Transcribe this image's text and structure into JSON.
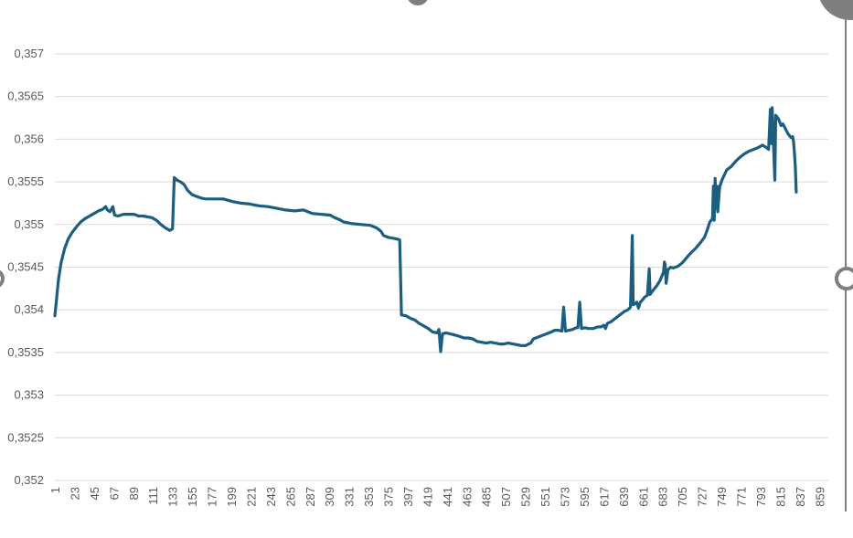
{
  "chart_data": {
    "type": "line",
    "title": "",
    "xlabel": "",
    "ylabel": "",
    "grid": true,
    "legend": "none",
    "ylim": [
      0.352,
      0.357
    ],
    "x_range": [
      1,
      869
    ],
    "y_ticks": [
      "0,352",
      "0,3525",
      "0,353",
      "0,3535",
      "0,354",
      "0,3545",
      "0,355",
      "0,3555",
      "0,356",
      "0,3565",
      "0,357"
    ],
    "x_ticks": [
      "1",
      "23",
      "45",
      "67",
      "89",
      "111",
      "133",
      "155",
      "177",
      "199",
      "221",
      "243",
      "265",
      "287",
      "309",
      "331",
      "353",
      "375",
      "397",
      "419",
      "441",
      "463",
      "485",
      "507",
      "529",
      "551",
      "573",
      "595",
      "617",
      "639",
      "661",
      "683",
      "705",
      "727",
      "749",
      "771",
      "793",
      "815",
      "837",
      "859"
    ],
    "series": [
      {
        "color": "#1b5e7f",
        "points": [
          [
            1,
            0.35393
          ],
          [
            3,
            0.35413
          ],
          [
            5,
            0.35435
          ],
          [
            8,
            0.35455
          ],
          [
            12,
            0.35472
          ],
          [
            16,
            0.35483
          ],
          [
            20,
            0.3549
          ],
          [
            25,
            0.35497
          ],
          [
            30,
            0.35503
          ],
          [
            35,
            0.35507
          ],
          [
            40,
            0.3551
          ],
          [
            45,
            0.35513
          ],
          [
            50,
            0.35516
          ],
          [
            55,
            0.35518
          ],
          [
            58,
            0.35521
          ],
          [
            60,
            0.35517
          ],
          [
            63,
            0.35515
          ],
          [
            66,
            0.35521
          ],
          [
            68,
            0.35511
          ],
          [
            72,
            0.3551
          ],
          [
            78,
            0.35512
          ],
          [
            85,
            0.35512
          ],
          [
            90,
            0.35512
          ],
          [
            95,
            0.3551
          ],
          [
            100,
            0.3551
          ],
          [
            110,
            0.35508
          ],
          [
            115,
            0.35505
          ],
          [
            120,
            0.355
          ],
          [
            125,
            0.35496
          ],
          [
            130,
            0.35493
          ],
          [
            133,
            0.35495
          ],
          [
            135,
            0.35555
          ],
          [
            138,
            0.35552
          ],
          [
            142,
            0.3555
          ],
          [
            146,
            0.35547
          ],
          [
            150,
            0.3554
          ],
          [
            155,
            0.35535
          ],
          [
            160,
            0.35533
          ],
          [
            165,
            0.35531
          ],
          [
            170,
            0.3553
          ],
          [
            180,
            0.3553
          ],
          [
            190,
            0.3553
          ],
          [
            200,
            0.35527
          ],
          [
            210,
            0.35525
          ],
          [
            220,
            0.35524
          ],
          [
            230,
            0.35522
          ],
          [
            240,
            0.35521
          ],
          [
            250,
            0.35519
          ],
          [
            260,
            0.35517
          ],
          [
            270,
            0.35516
          ],
          [
            280,
            0.35517
          ],
          [
            290,
            0.35513
          ],
          [
            300,
            0.35512
          ],
          [
            310,
            0.35511
          ],
          [
            315,
            0.35508
          ],
          [
            320,
            0.35506
          ],
          [
            325,
            0.35503
          ],
          [
            330,
            0.35502
          ],
          [
            335,
            0.35501
          ],
          [
            345,
            0.355
          ],
          [
            355,
            0.35499
          ],
          [
            362,
            0.35496
          ],
          [
            367,
            0.35492
          ],
          [
            370,
            0.35487
          ],
          [
            375,
            0.35485
          ],
          [
            380,
            0.35484
          ],
          [
            385,
            0.35483
          ],
          [
            388,
            0.35482
          ],
          [
            390,
            0.35394
          ],
          [
            395,
            0.35393
          ],
          [
            400,
            0.3539
          ],
          [
            405,
            0.35388
          ],
          [
            410,
            0.35384
          ],
          [
            415,
            0.35381
          ],
          [
            420,
            0.35378
          ],
          [
            425,
            0.35374
          ],
          [
            430,
            0.35373
          ],
          [
            432,
            0.35377
          ],
          [
            434,
            0.35351
          ],
          [
            436,
            0.35372
          ],
          [
            440,
            0.35373
          ],
          [
            448,
            0.35371
          ],
          [
            455,
            0.35369
          ],
          [
            460,
            0.35367
          ],
          [
            465,
            0.35367
          ],
          [
            470,
            0.35366
          ],
          [
            475,
            0.35363
          ],
          [
            480,
            0.35362
          ],
          [
            485,
            0.35361
          ],
          [
            490,
            0.35362
          ],
          [
            495,
            0.35361
          ],
          [
            500,
            0.3536
          ],
          [
            505,
            0.3536
          ],
          [
            510,
            0.35361
          ],
          [
            515,
            0.3536
          ],
          [
            520,
            0.35359
          ],
          [
            525,
            0.35358
          ],
          [
            529,
            0.35358
          ],
          [
            535,
            0.35361
          ],
          [
            538,
            0.35366
          ],
          [
            543,
            0.35368
          ],
          [
            548,
            0.3537
          ],
          [
            553,
            0.35372
          ],
          [
            558,
            0.35374
          ],
          [
            562,
            0.35376
          ],
          [
            566,
            0.35376
          ],
          [
            570,
            0.35375
          ],
          [
            572,
            0.35403
          ],
          [
            574,
            0.35375
          ],
          [
            578,
            0.35376
          ],
          [
            582,
            0.35377
          ],
          [
            586,
            0.35379
          ],
          [
            588,
            0.35379
          ],
          [
            590,
            0.35409
          ],
          [
            592,
            0.35378
          ],
          [
            596,
            0.35379
          ],
          [
            600,
            0.35378
          ],
          [
            605,
            0.35378
          ],
          [
            610,
            0.3538
          ],
          [
            614,
            0.3538
          ],
          [
            617,
            0.35382
          ],
          [
            619,
            0.35378
          ],
          [
            621,
            0.35384
          ],
          [
            625,
            0.35386
          ],
          [
            630,
            0.3539
          ],
          [
            635,
            0.35394
          ],
          [
            640,
            0.35398
          ],
          [
            644,
            0.354
          ],
          [
            647,
            0.35403
          ],
          [
            649,
            0.35487
          ],
          [
            650,
            0.35406
          ],
          [
            652,
            0.35407
          ],
          [
            654,
            0.35409
          ],
          [
            656,
            0.35402
          ],
          [
            658,
            0.35409
          ],
          [
            660,
            0.35411
          ],
          [
            663,
            0.35415
          ],
          [
            666,
            0.35417
          ],
          [
            668,
            0.35448
          ],
          [
            669,
            0.35418
          ],
          [
            671,
            0.35421
          ],
          [
            674,
            0.35425
          ],
          [
            677,
            0.35429
          ],
          [
            680,
            0.35434
          ],
          [
            682,
            0.35439
          ],
          [
            684,
            0.35444
          ],
          [
            685,
            0.35456
          ],
          [
            686,
            0.35453
          ],
          [
            687,
            0.35431
          ],
          [
            689,
            0.35447
          ],
          [
            692,
            0.3545
          ],
          [
            695,
            0.35449
          ],
          [
            700,
            0.35451
          ],
          [
            705,
            0.35455
          ],
          [
            710,
            0.35461
          ],
          [
            715,
            0.35467
          ],
          [
            720,
            0.35472
          ],
          [
            725,
            0.35478
          ],
          [
            730,
            0.35485
          ],
          [
            733,
            0.35493
          ],
          [
            736,
            0.35503
          ],
          [
            739,
            0.35507
          ],
          [
            740,
            0.35545
          ],
          [
            741,
            0.35505
          ],
          [
            742,
            0.35554
          ],
          [
            743,
            0.35519
          ],
          [
            744,
            0.35545
          ],
          [
            745,
            0.35515
          ],
          [
            747,
            0.35544
          ],
          [
            750,
            0.35553
          ],
          [
            755,
            0.35564
          ],
          [
            760,
            0.35568
          ],
          [
            765,
            0.35574
          ],
          [
            770,
            0.35579
          ],
          [
            775,
            0.35583
          ],
          [
            780,
            0.35586
          ],
          [
            785,
            0.35588
          ],
          [
            790,
            0.3559
          ],
          [
            795,
            0.35593
          ],
          [
            800,
            0.3559
          ],
          [
            802,
            0.35588
          ],
          [
            804,
            0.35635
          ],
          [
            805,
            0.35595
          ],
          [
            806,
            0.35637
          ],
          [
            808,
            0.3558
          ],
          [
            809,
            0.35552
          ],
          [
            810,
            0.35628
          ],
          [
            813,
            0.35624
          ],
          [
            816,
            0.35616
          ],
          [
            818,
            0.35618
          ],
          [
            821,
            0.35612
          ],
          [
            824,
            0.35606
          ],
          [
            827,
            0.35602
          ],
          [
            829,
            0.35603
          ],
          [
            830,
            0.35597
          ],
          [
            831,
            0.35583
          ],
          [
            832,
            0.35568
          ],
          [
            833,
            0.35538
          ]
        ]
      }
    ]
  }
}
